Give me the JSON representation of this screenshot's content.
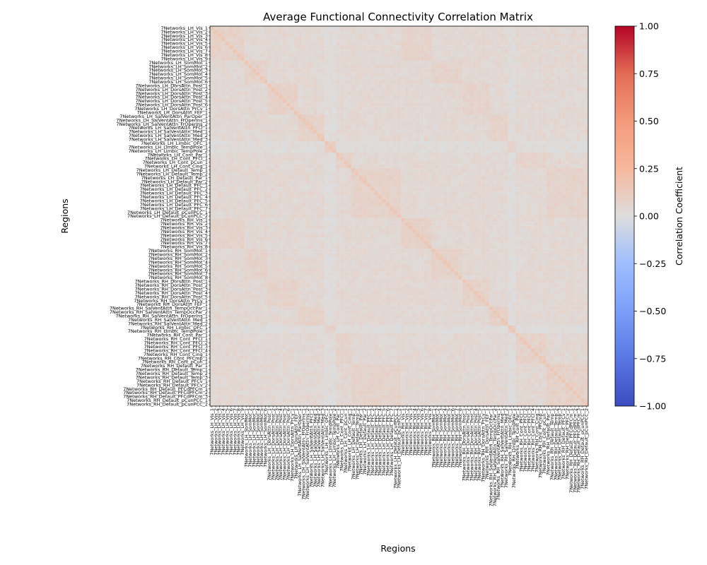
{
  "chart_data": {
    "type": "heatmap",
    "title": "Average Functional Connectivity Correlation Matrix",
    "xlabel": "Regions",
    "ylabel": "Regions",
    "colorbar_label": "Correlation Coefficient",
    "colormap": "coolwarm",
    "vmin": -1.0,
    "vmax": 1.0,
    "colorbar_ticks": [
      "1.00",
      "0.75",
      "0.50",
      "0.25",
      "0.00",
      "−0.25",
      "−0.50",
      "−0.75",
      "−1.00"
    ],
    "colorbar_tick_values": [
      1.0,
      0.75,
      0.5,
      0.25,
      0.0,
      -0.25,
      -0.5,
      -0.75,
      -1.0
    ],
    "diagonal_value": 0.15,
    "typical_value_range": [
      0.0,
      0.15
    ],
    "regions": [
      "7Networks_LH_Vis_1",
      "7Networks_LH_Vis_2",
      "7Networks_LH_Vis_3",
      "7Networks_LH_Vis_4",
      "7Networks_LH_Vis_5",
      "7Networks_LH_Vis_6",
      "7Networks_LH_Vis_7",
      "7Networks_LH_Vis_8",
      "7Networks_LH_Vis_9",
      "7Networks_LH_SomMot_1",
      "7Networks_LH_SomMot_2",
      "7Networks_LH_SomMot_3",
      "7Networks_LH_SomMot_4",
      "7Networks_LH_SomMot_5",
      "7Networks_LH_SomMot_6",
      "7Networks_LH_DorsAttn_Post_1",
      "7Networks_LH_DorsAttn_Post_2",
      "7Networks_LH_DorsAttn_Post_3",
      "7Networks_LH_DorsAttn_Post_4",
      "7Networks_LH_DorsAttn_Post_5",
      "7Networks_LH_DorsAttn_Post_6",
      "7Networks_LH_DorsAttn_PrCv_1",
      "7Networks_LH_DorsAttn_FEF_1",
      "7Networks_LH_SalVentAttn_ParOper_1",
      "7Networks_LH_SalVentAttn_FrOperIns_1",
      "7Networks_LH_SalVentAttn_FrOperIns_2",
      "7Networks_LH_SalVentAttn_PFCl_1",
      "7Networks_LH_SalVentAttn_Med_1",
      "7Networks_LH_SalVentAttn_Med_2",
      "7Networks_LH_SalVentAttn_Med_3",
      "7Networks_LH_Limbic_OFC_1",
      "7Networks_LH_Limbic_TempPole_1",
      "7Networks_LH_Limbic_TempPole_2",
      "7Networks_LH_Cont_Par_1",
      "7Networks_LH_Cont_PFCl_1",
      "7Networks_LH_Cont_pCun_1",
      "7Networks_LH_Cont_Cing_1",
      "7Networks_LH_Default_Temp_1",
      "7Networks_LH_Default_Temp_2",
      "7Networks_LH_Default_Par_1",
      "7Networks_LH_Default_Par_2",
      "7Networks_LH_Default_PFC_1",
      "7Networks_LH_Default_PFC_2",
      "7Networks_LH_Default_PFC_3",
      "7Networks_LH_Default_PFC_4",
      "7Networks_LH_Default_PFC_5",
      "7Networks_LH_Default_PFC_6",
      "7Networks_LH_Default_PFC_7",
      "7Networks_LH_Default_pCunPCC_1",
      "7Networks_LH_Default_pCunPCC_2",
      "7Networks_RH_Vis_1",
      "7Networks_RH_Vis_2",
      "7Networks_RH_Vis_3",
      "7Networks_RH_Vis_4",
      "7Networks_RH_Vis_5",
      "7Networks_RH_Vis_6",
      "7Networks_RH_Vis_7",
      "7Networks_RH_Vis_8",
      "7Networks_RH_SomMot_1",
      "7Networks_RH_SomMot_2",
      "7Networks_RH_SomMot_3",
      "7Networks_RH_SomMot_4",
      "7Networks_RH_SomMot_5",
      "7Networks_RH_SomMot_6",
      "7Networks_RH_SomMot_7",
      "7Networks_RH_SomMot_8",
      "7Networks_RH_DorsAttn_Post_1",
      "7Networks_RH_DorsAttn_Post_2",
      "7Networks_RH_DorsAttn_Post_3",
      "7Networks_RH_DorsAttn_Post_4",
      "7Networks_RH_DorsAttn_Post_5",
      "7Networks_RH_DorsAttn_PrCv_1",
      "7Networks_RH_DorsAttn_FEF_1",
      "7Networks_RH_SalVentAttn_TempOccPar_1",
      "7Networks_RH_SalVentAttn_TempOccPar_2",
      "7Networks_RH_SalVentAttn_FrOperIns_1",
      "7Networks_RH_SalVentAttn_Med_1",
      "7Networks_RH_SalVentAttn_Med_2",
      "7Networks_RH_Limbic_OFC_1",
      "7Networks_RH_Limbic_TempPole_1",
      "7Networks_RH_Cont_Par_1",
      "7Networks_RH_Cont_PFCl_1",
      "7Networks_RH_Cont_PFCl_2",
      "7Networks_RH_Cont_PFCl_3",
      "7Networks_RH_Cont_PFCl_4",
      "7Networks_RH_Cont_Cing_1",
      "7Networks_RH_Cont_PFCmp_1",
      "7Networks_RH_Cont_pCun_1",
      "7Networks_RH_Default_Par_1",
      "7Networks_RH_Default_Temp_1",
      "7Networks_RH_Default_Temp_2",
      "7Networks_RH_Default_Temp_3",
      "7Networks_RH_Default_PFCv_1",
      "7Networks_RH_Default_PFCv_2",
      "7Networks_RH_Default_PFCdPFCm_1",
      "7Networks_RH_Default_PFCdPFCm_2",
      "7Networks_RH_Default_PFCdPFCm_3",
      "7Networks_RH_Default_pCunPCC_1",
      "7Networks_RH_Default_pCunPCC_2"
    ]
  }
}
